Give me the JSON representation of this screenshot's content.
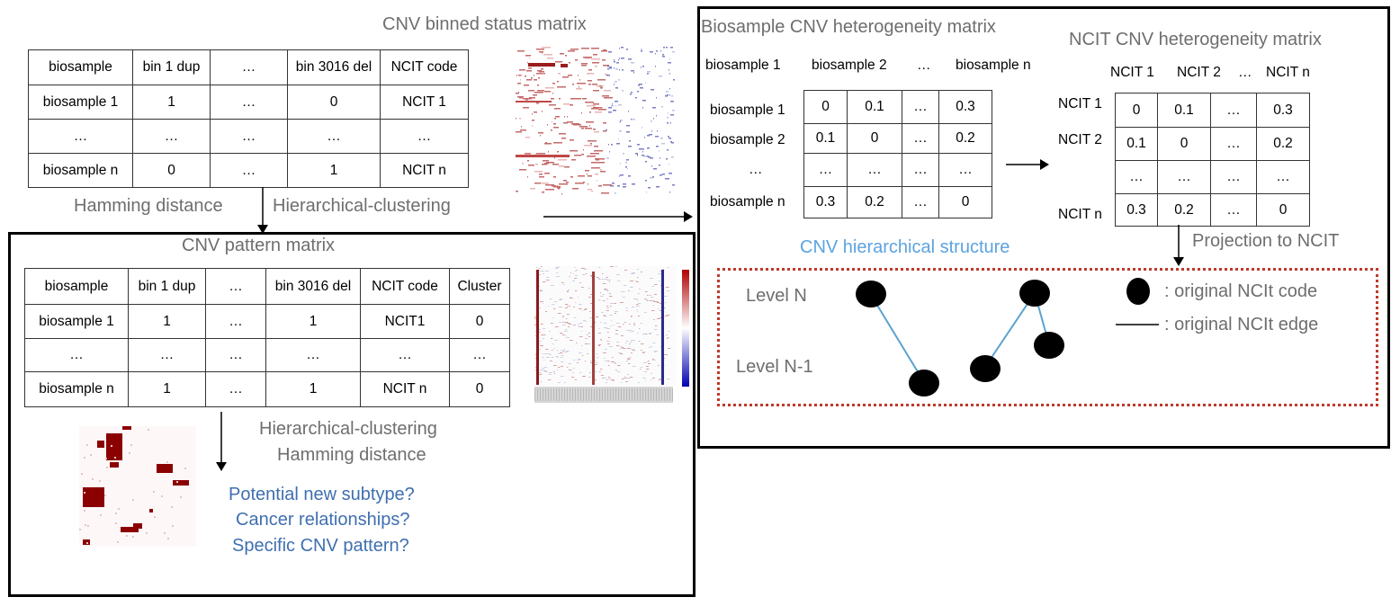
{
  "top_left": {
    "title": "CNV binned status matrix",
    "table": {
      "rows": [
        [
          "biosample",
          "bin 1 dup",
          "…",
          "bin 3016 del",
          "NCIT code"
        ],
        [
          "biosample 1",
          "1",
          "…",
          "0",
          "NCIT 1"
        ],
        [
          "…",
          "…",
          "…",
          "…",
          "…"
        ],
        [
          "biosample n",
          "0",
          "…",
          "1",
          "NCIT n"
        ]
      ]
    },
    "arrow_left_label": "Hamming distance",
    "arrow_right_label": "Hierarchical-clustering"
  },
  "pattern_panel": {
    "title": "CNV pattern matrix",
    "table": {
      "rows": [
        [
          "biosample",
          "bin 1 dup",
          "…",
          "bin 3016 del",
          "NCIT code",
          "Cluster"
        ],
        [
          "biosample 1",
          "1",
          "…",
          "1",
          "NCIT1",
          "0"
        ],
        [
          "…",
          "…",
          "…",
          "…",
          "…",
          "…"
        ],
        [
          "biosample n",
          "1",
          "…",
          "1",
          "NCIT n",
          "0"
        ]
      ]
    },
    "arrow_label_line1": "Hierarchical-clustering",
    "arrow_label_line2": "Hamming distance",
    "questions": [
      "Potential new subtype?",
      "Cancer relationships?",
      "Specific CNV pattern?"
    ]
  },
  "right_panel": {
    "biosample_title": "Biosample CNV heterogeneity matrix",
    "biosample_col_headers": [
      "biosample 1",
      "biosample 2",
      "…",
      "biosample n"
    ],
    "biosample_row_headers": [
      "biosample 1",
      "biosample 2",
      "…",
      "biosample n"
    ],
    "biosample_matrix": [
      [
        "0",
        "0.1",
        "…",
        "0.3"
      ],
      [
        "0.1",
        "0",
        "…",
        "0.2"
      ],
      [
        "…",
        "…",
        "…",
        "…"
      ],
      [
        "0.3",
        "0.2",
        "…",
        "0"
      ]
    ],
    "ncit_title": "NCIT CNV heterogeneity matrix",
    "ncit_col_headers": [
      "NCIT 1",
      "NCIT 2",
      "…",
      "NCIT n"
    ],
    "ncit_row_headers": [
      "NCIT 1",
      "NCIT 2",
      "…",
      "NCIT n"
    ],
    "ncit_matrix": [
      [
        "0",
        "0.1",
        "…",
        "0.3"
      ],
      [
        "0.1",
        "0",
        "…",
        "0.2"
      ],
      [
        "…",
        "…",
        "…",
        "…"
      ],
      [
        "0.3",
        "0.2",
        "…",
        "0"
      ]
    ],
    "projection_label": "Projection to NCIT",
    "structure_title": "CNV hierarchical structure",
    "level_top": "Level N",
    "level_bottom": "Level N-1",
    "legend_node": ": original NCIt code",
    "legend_edge": ": original NCIt edge"
  },
  "colors": {
    "border": "#000000",
    "dashed_border": "#c0392b",
    "gray_text": "#6e6e6e",
    "question_blue": "#3f6fb0",
    "structure_blue": "#5ba3e0",
    "edge_blue": "#5ba3d0",
    "heat_red": "#8b0000"
  }
}
